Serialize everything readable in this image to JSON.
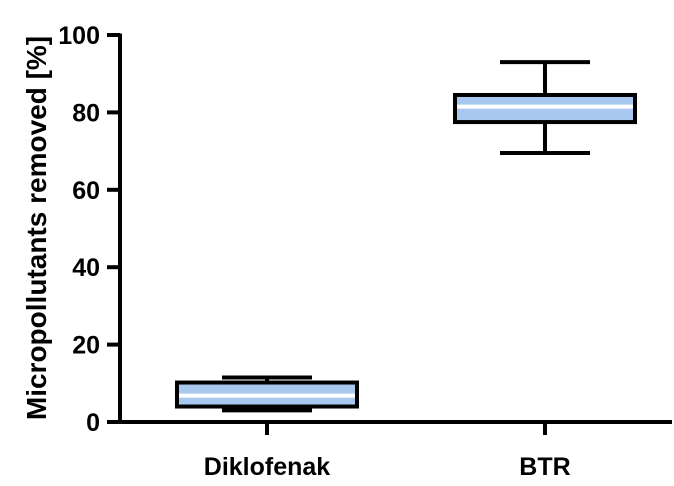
{
  "chart_data": {
    "type": "box",
    "title": "",
    "xlabel": "",
    "ylabel": "Micropollutants removed [%]",
    "ylim": [
      0,
      100
    ],
    "yticks": [
      0,
      20,
      40,
      60,
      80,
      100
    ],
    "categories": [
      "Diklofenak",
      "BTR"
    ],
    "boxes": [
      {
        "category": "Diklofenak",
        "min": 3,
        "q1": 4,
        "median": 6.8,
        "q3": 10.2,
        "max": 11.5
      },
      {
        "category": "BTR",
        "min": 69.5,
        "q1": 77.5,
        "median": 81.5,
        "q3": 84.5,
        "max": 93
      }
    ],
    "colors": {
      "box_fill": "#a9c8f0",
      "stroke": "#000000",
      "median_line": "#ffffff"
    },
    "grid": false,
    "legend": "none"
  }
}
